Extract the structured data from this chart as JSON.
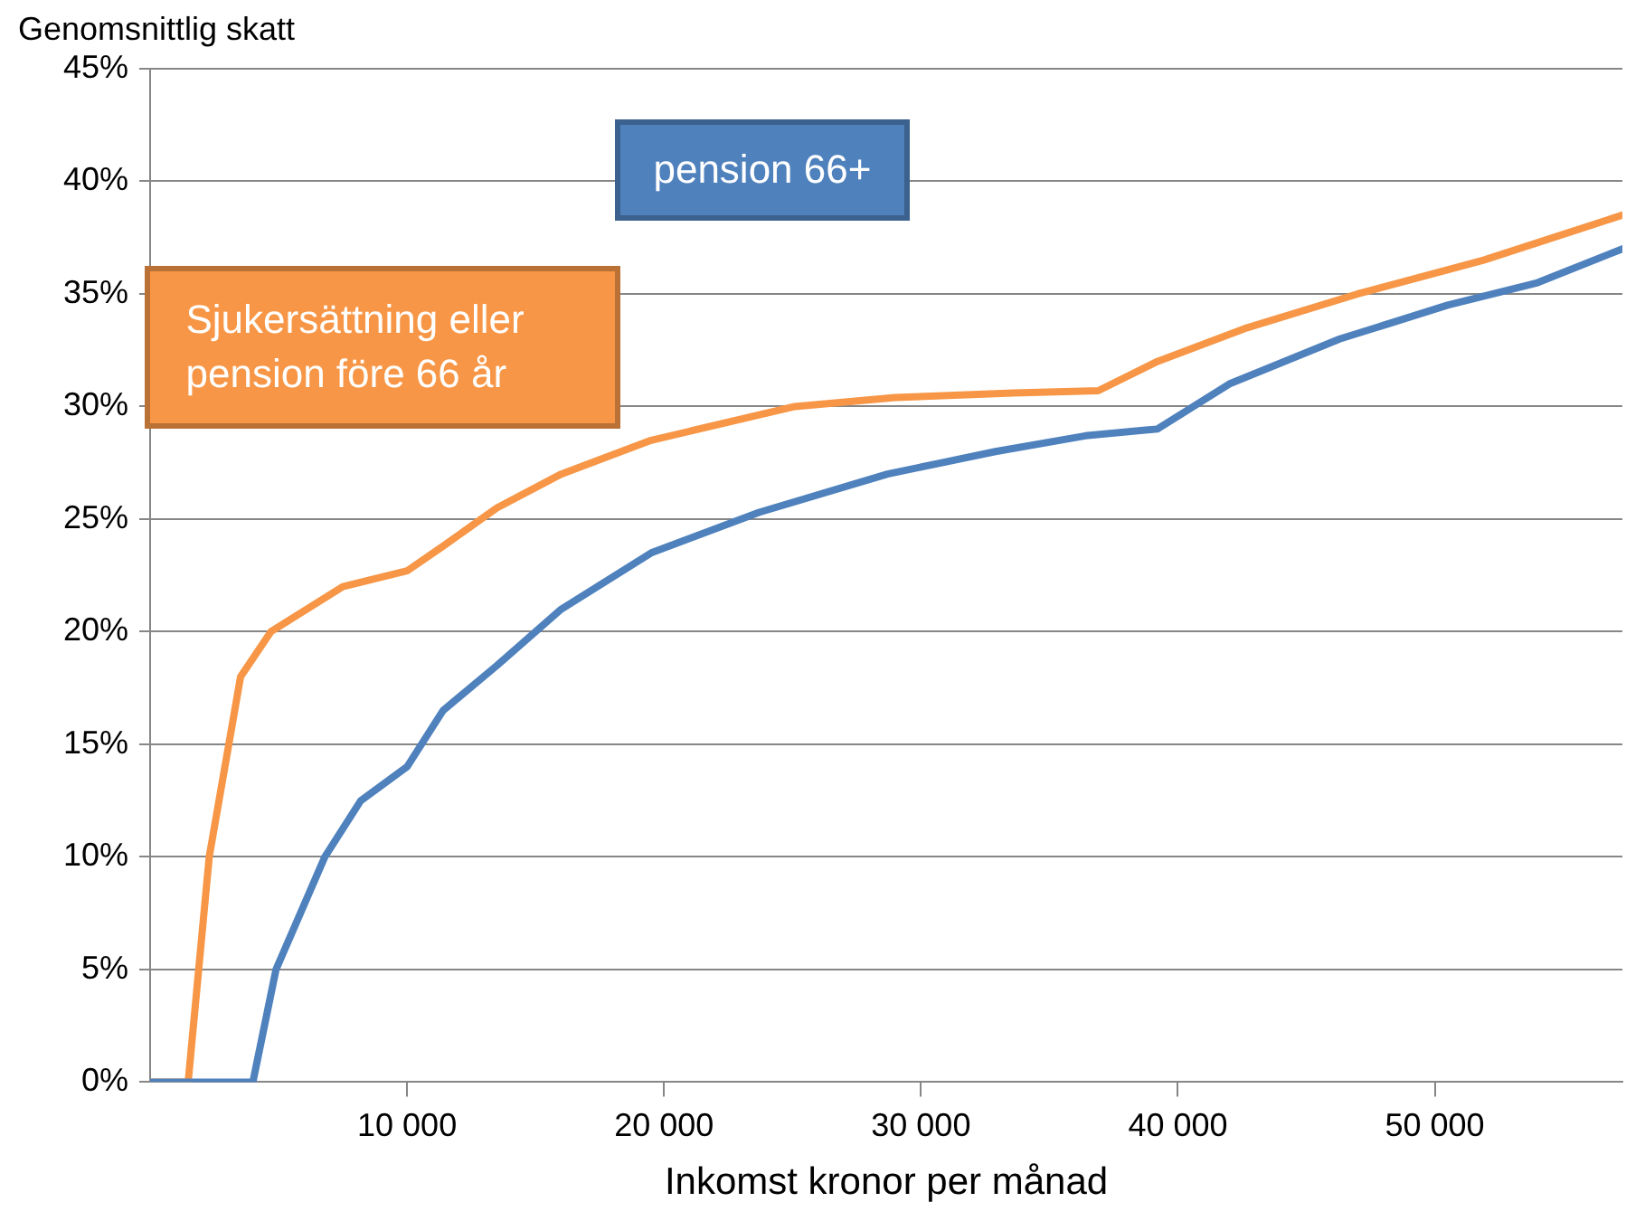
{
  "chart_data": {
    "type": "line",
    "xlabel": "Inkomst kronor per månad",
    "ylabel": "Genomsnittlig skatt",
    "xlim": [
      0,
      57300
    ],
    "ylim": [
      0,
      45
    ],
    "xticks": [
      {
        "value": 10000,
        "label": "10 000"
      },
      {
        "value": 20000,
        "label": "20 000"
      },
      {
        "value": 30000,
        "label": "30 000"
      },
      {
        "value": 40000,
        "label": "40 000"
      },
      {
        "value": 50000,
        "label": "50 000"
      }
    ],
    "yticks": [
      {
        "value": 0,
        "label": "0%"
      },
      {
        "value": 5,
        "label": "5%"
      },
      {
        "value": 10,
        "label": "10%"
      },
      {
        "value": 15,
        "label": "15%"
      },
      {
        "value": 20,
        "label": "20%"
      },
      {
        "value": 25,
        "label": "25%"
      },
      {
        "value": 30,
        "label": "30%"
      },
      {
        "value": 35,
        "label": "35%"
      },
      {
        "value": 40,
        "label": "40%"
      },
      {
        "value": 45,
        "label": "45%"
      }
    ],
    "grid": "y",
    "legend": false,
    "marker": "none",
    "line_style": "solid",
    "series": [
      {
        "name": "pension 66+",
        "color": "#4f81bd",
        "x": [
          0,
          4000,
          4900,
          6800,
          8200,
          10000,
          11400,
          13500,
          16000,
          19500,
          23700,
          28700,
          32900,
          36400,
          39200,
          42000,
          46300,
          50500,
          54000,
          57300
        ],
        "values": [
          0,
          0,
          5,
          10,
          12.5,
          14,
          16.5,
          18.5,
          21,
          23.5,
          25.3,
          27,
          28,
          28.7,
          29,
          31,
          33,
          34.5,
          35.5,
          37
        ]
      },
      {
        "name": "Sjukersättning eller pension före 66 år",
        "color": "#f79646",
        "x": [
          0,
          1480,
          2300,
          3520,
          4700,
          7500,
          10000,
          11400,
          13500,
          16000,
          19500,
          25100,
          29000,
          33600,
          36900,
          39200,
          42700,
          47000,
          51900,
          57300
        ],
        "values": [
          0,
          0,
          10,
          18,
          20,
          22,
          22.7,
          23.8,
          25.5,
          27,
          28.5,
          30,
          30.4,
          30.6,
          30.7,
          32,
          33.5,
          35,
          36.5,
          38.5
        ]
      }
    ]
  }
}
